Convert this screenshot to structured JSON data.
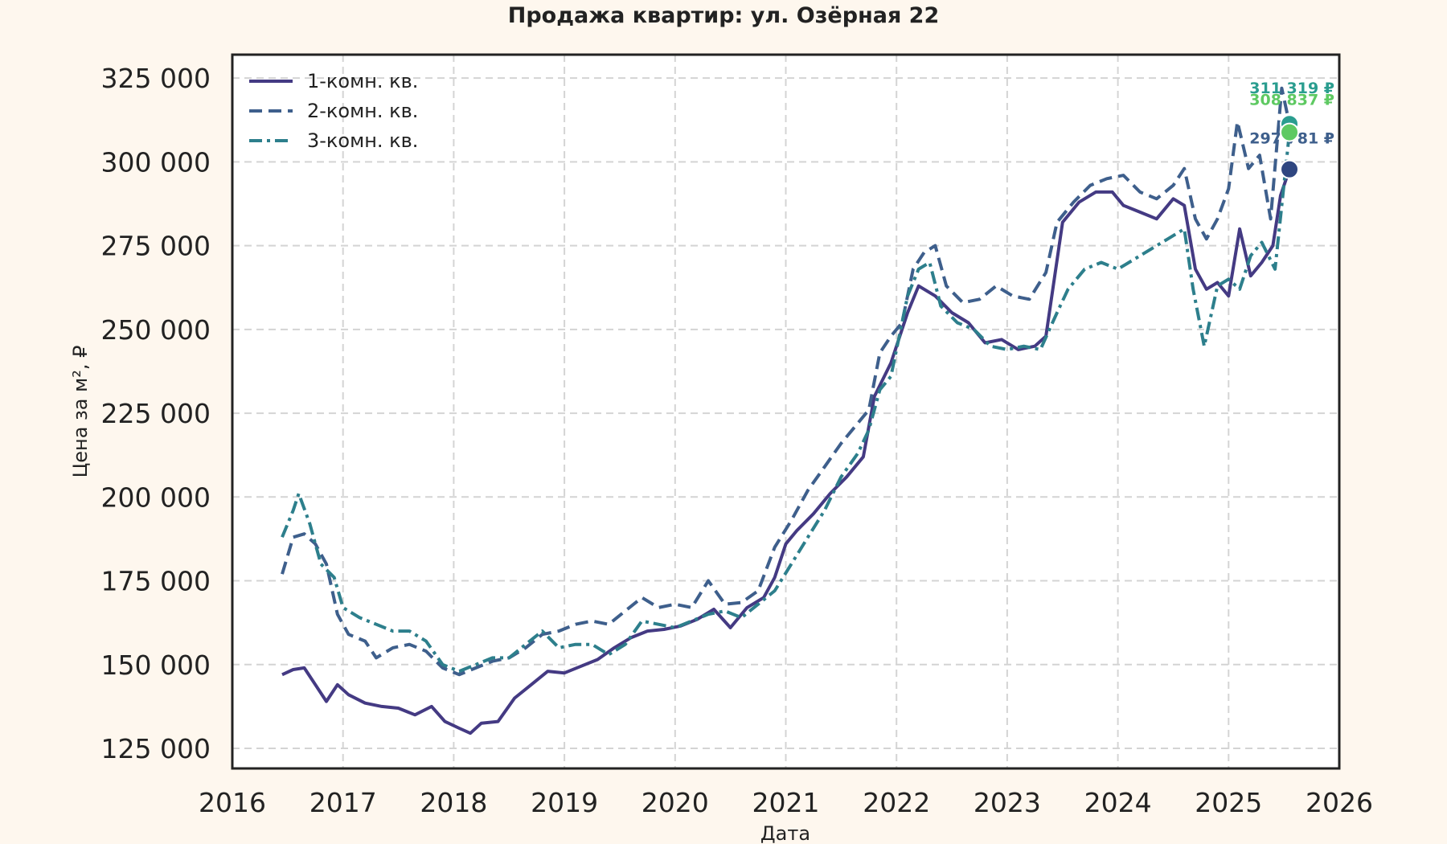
{
  "chart_data": {
    "type": "line",
    "title": "Продажа квартир: ул. Озёрная 22",
    "xlabel": "Дата",
    "ylabel": "Цена за м², ₽",
    "xlim": [
      2016.0,
      2026.0
    ],
    "ylim": [
      119000,
      332000
    ],
    "x_ticks": [
      "2016",
      "2017",
      "2018",
      "2019",
      "2020",
      "2021",
      "2022",
      "2023",
      "2024",
      "2025",
      "2026"
    ],
    "y_ticks": [
      {
        "value": 125000,
        "label": "125 000"
      },
      {
        "value": 150000,
        "label": "150 000"
      },
      {
        "value": 175000,
        "label": "175 000"
      },
      {
        "value": 200000,
        "label": "200 000"
      },
      {
        "value": 225000,
        "label": "225 000"
      },
      {
        "value": 250000,
        "label": "250 000"
      },
      {
        "value": 275000,
        "label": "275 000"
      },
      {
        "value": 300000,
        "label": "300 000"
      },
      {
        "value": 325000,
        "label": "325 000"
      }
    ],
    "grid": true,
    "legend_position": "top-left",
    "series": [
      {
        "name": "1-комн. кв.",
        "color": "#443a83",
        "style": "solid",
        "end_label": "297 781 ₽",
        "end_value": 297781,
        "points": [
          [
            2016.45,
            147000
          ],
          [
            2016.55,
            148500
          ],
          [
            2016.65,
            149000
          ],
          [
            2016.75,
            144000
          ],
          [
            2016.85,
            139000
          ],
          [
            2016.95,
            144000
          ],
          [
            2017.05,
            141000
          ],
          [
            2017.2,
            138500
          ],
          [
            2017.35,
            137500
          ],
          [
            2017.5,
            137000
          ],
          [
            2017.65,
            135000
          ],
          [
            2017.8,
            137500
          ],
          [
            2017.92,
            133000
          ],
          [
            2018.05,
            131000
          ],
          [
            2018.15,
            129500
          ],
          [
            2018.25,
            132500
          ],
          [
            2018.4,
            133000
          ],
          [
            2018.55,
            140000
          ],
          [
            2018.7,
            144000
          ],
          [
            2018.85,
            148000
          ],
          [
            2019.0,
            147500
          ],
          [
            2019.15,
            149500
          ],
          [
            2019.3,
            151500
          ],
          [
            2019.45,
            155000
          ],
          [
            2019.6,
            158000
          ],
          [
            2019.75,
            160000
          ],
          [
            2019.9,
            160500
          ],
          [
            2020.05,
            161500
          ],
          [
            2020.2,
            163500
          ],
          [
            2020.35,
            166500
          ],
          [
            2020.5,
            161000
          ],
          [
            2020.65,
            167000
          ],
          [
            2020.8,
            170000
          ],
          [
            2020.9,
            176000
          ],
          [
            2021.0,
            186000
          ],
          [
            2021.1,
            190000
          ],
          [
            2021.25,
            195000
          ],
          [
            2021.4,
            201000
          ],
          [
            2021.55,
            206000
          ],
          [
            2021.7,
            212000
          ],
          [
            2021.8,
            230000
          ],
          [
            2021.95,
            240000
          ],
          [
            2022.1,
            255000
          ],
          [
            2022.2,
            263000
          ],
          [
            2022.35,
            260000
          ],
          [
            2022.5,
            255000
          ],
          [
            2022.65,
            252000
          ],
          [
            2022.8,
            246000
          ],
          [
            2022.95,
            247000
          ],
          [
            2023.1,
            244000
          ],
          [
            2023.25,
            245000
          ],
          [
            2023.35,
            248000
          ],
          [
            2023.5,
            282000
          ],
          [
            2023.65,
            288000
          ],
          [
            2023.8,
            291000
          ],
          [
            2023.95,
            291000
          ],
          [
            2024.05,
            287000
          ],
          [
            2024.2,
            285000
          ],
          [
            2024.35,
            283000
          ],
          [
            2024.5,
            289000
          ],
          [
            2024.6,
            287000
          ],
          [
            2024.7,
            268000
          ],
          [
            2024.8,
            262000
          ],
          [
            2024.9,
            264000
          ],
          [
            2025.0,
            260000
          ],
          [
            2025.1,
            280000
          ],
          [
            2025.2,
            266000
          ],
          [
            2025.3,
            270000
          ],
          [
            2025.4,
            275000
          ],
          [
            2025.47,
            290000
          ],
          [
            2025.55,
            297781
          ]
        ]
      },
      {
        "name": "2-комн. кв.",
        "color": "#3e5f8c",
        "style": "dashed",
        "end_label": "311 319 ₽",
        "end_value": 311319,
        "points": [
          [
            2016.45,
            177000
          ],
          [
            2016.55,
            188000
          ],
          [
            2016.65,
            189000
          ],
          [
            2016.75,
            186000
          ],
          [
            2016.85,
            180000
          ],
          [
            2016.95,
            165000
          ],
          [
            2017.05,
            159000
          ],
          [
            2017.2,
            157000
          ],
          [
            2017.3,
            152000
          ],
          [
            2017.45,
            155000
          ],
          [
            2017.6,
            156000
          ],
          [
            2017.75,
            154000
          ],
          [
            2017.9,
            149000
          ],
          [
            2018.05,
            147000
          ],
          [
            2018.2,
            149000
          ],
          [
            2018.35,
            151000
          ],
          [
            2018.5,
            152000
          ],
          [
            2018.65,
            155000
          ],
          [
            2018.8,
            159000
          ],
          [
            2018.95,
            160000
          ],
          [
            2019.1,
            162000
          ],
          [
            2019.25,
            163000
          ],
          [
            2019.4,
            162000
          ],
          [
            2019.55,
            166000
          ],
          [
            2019.7,
            170000
          ],
          [
            2019.85,
            167000
          ],
          [
            2020.0,
            168000
          ],
          [
            2020.15,
            167000
          ],
          [
            2020.3,
            175000
          ],
          [
            2020.45,
            168000
          ],
          [
            2020.6,
            168500
          ],
          [
            2020.75,
            172000
          ],
          [
            2020.9,
            185000
          ],
          [
            2021.05,
            193000
          ],
          [
            2021.2,
            202000
          ],
          [
            2021.35,
            209000
          ],
          [
            2021.5,
            216000
          ],
          [
            2021.65,
            222000
          ],
          [
            2021.75,
            226000
          ],
          [
            2021.85,
            243000
          ],
          [
            2021.95,
            248000
          ],
          [
            2022.05,
            252000
          ],
          [
            2022.15,
            268000
          ],
          [
            2022.25,
            273000
          ],
          [
            2022.35,
            275000
          ],
          [
            2022.45,
            263000
          ],
          [
            2022.6,
            258000
          ],
          [
            2022.75,
            259000
          ],
          [
            2022.9,
            263000
          ],
          [
            2023.05,
            260000
          ],
          [
            2023.2,
            259000
          ],
          [
            2023.35,
            267000
          ],
          [
            2023.45,
            282000
          ],
          [
            2023.6,
            288000
          ],
          [
            2023.75,
            293000
          ],
          [
            2023.9,
            295000
          ],
          [
            2024.05,
            296000
          ],
          [
            2024.2,
            291000
          ],
          [
            2024.35,
            289000
          ],
          [
            2024.5,
            293000
          ],
          [
            2024.6,
            298000
          ],
          [
            2024.7,
            283000
          ],
          [
            2024.8,
            277000
          ],
          [
            2024.9,
            283000
          ],
          [
            2025.0,
            292000
          ],
          [
            2025.08,
            312000
          ],
          [
            2025.18,
            298000
          ],
          [
            2025.28,
            302000
          ],
          [
            2025.38,
            283000
          ],
          [
            2025.48,
            322000
          ],
          [
            2025.55,
            311319
          ]
        ]
      },
      {
        "name": "3-комн. кв.",
        "color": "#2d7f8c",
        "style": "dashdot",
        "end_label": "308 837 ₽",
        "end_value": 308837,
        "points": [
          [
            2016.45,
            188000
          ],
          [
            2016.55,
            196000
          ],
          [
            2016.6,
            201000
          ],
          [
            2016.7,
            192000
          ],
          [
            2016.8,
            180000
          ],
          [
            2016.92,
            176000
          ],
          [
            2017.0,
            167000
          ],
          [
            2017.15,
            164000
          ],
          [
            2017.3,
            162000
          ],
          [
            2017.45,
            160000
          ],
          [
            2017.6,
            160000
          ],
          [
            2017.75,
            157000
          ],
          [
            2017.9,
            150000
          ],
          [
            2018.05,
            148000
          ],
          [
            2018.2,
            150000
          ],
          [
            2018.35,
            152000
          ],
          [
            2018.5,
            152000
          ],
          [
            2018.65,
            156000
          ],
          [
            2018.8,
            160000
          ],
          [
            2018.95,
            155000
          ],
          [
            2019.1,
            156000
          ],
          [
            2019.25,
            156000
          ],
          [
            2019.4,
            153000
          ],
          [
            2019.55,
            156000
          ],
          [
            2019.7,
            163000
          ],
          [
            2019.85,
            162000
          ],
          [
            2020.0,
            161000
          ],
          [
            2020.15,
            163000
          ],
          [
            2020.3,
            165000
          ],
          [
            2020.45,
            166000
          ],
          [
            2020.6,
            164000
          ],
          [
            2020.75,
            168000
          ],
          [
            2020.9,
            172000
          ],
          [
            2021.05,
            180000
          ],
          [
            2021.2,
            188000
          ],
          [
            2021.35,
            196000
          ],
          [
            2021.5,
            206000
          ],
          [
            2021.65,
            213000
          ],
          [
            2021.75,
            220000
          ],
          [
            2021.85,
            232000
          ],
          [
            2021.95,
            236000
          ],
          [
            2022.1,
            260000
          ],
          [
            2022.2,
            268000
          ],
          [
            2022.3,
            270000
          ],
          [
            2022.4,
            257000
          ],
          [
            2022.55,
            252000
          ],
          [
            2022.7,
            250000
          ],
          [
            2022.85,
            245000
          ],
          [
            2023.0,
            244000
          ],
          [
            2023.15,
            245000
          ],
          [
            2023.3,
            244000
          ],
          [
            2023.45,
            255000
          ],
          [
            2023.55,
            262000
          ],
          [
            2023.7,
            268000
          ],
          [
            2023.85,
            270000
          ],
          [
            2024.0,
            268000
          ],
          [
            2024.15,
            271000
          ],
          [
            2024.3,
            274000
          ],
          [
            2024.45,
            277000
          ],
          [
            2024.6,
            280000
          ],
          [
            2024.68,
            262000
          ],
          [
            2024.78,
            245000
          ],
          [
            2024.9,
            263000
          ],
          [
            2025.0,
            265000
          ],
          [
            2025.1,
            262000
          ],
          [
            2025.2,
            272000
          ],
          [
            2025.3,
            276000
          ],
          [
            2025.42,
            268000
          ],
          [
            2025.5,
            293000
          ],
          [
            2025.55,
            308837
          ]
        ]
      }
    ]
  }
}
